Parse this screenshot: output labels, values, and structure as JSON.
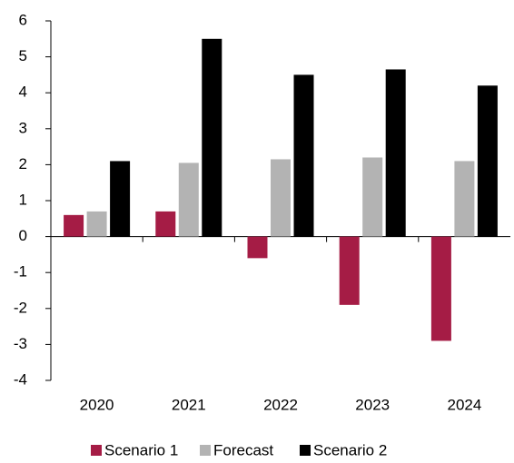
{
  "chart_data": {
    "type": "bar",
    "categories": [
      "2020",
      "2021",
      "2022",
      "2023",
      "2024"
    ],
    "series": [
      {
        "name": "Scenario 1",
        "color": "#a51c45",
        "values": [
          0.6,
          0.7,
          -0.6,
          -1.9,
          -2.9
        ]
      },
      {
        "name": "Forecast",
        "color": "#b3b3b3",
        "values": [
          0.7,
          2.05,
          2.15,
          2.2,
          2.1
        ]
      },
      {
        "name": "Scenario 2",
        "color": "#000000",
        "values": [
          2.1,
          5.5,
          4.5,
          4.65,
          4.2
        ]
      }
    ],
    "ylim": [
      -4,
      6
    ],
    "yticks": [
      -4,
      -3,
      -2,
      -1,
      0,
      1,
      2,
      3,
      4,
      5,
      6
    ],
    "legend": "bottom"
  }
}
